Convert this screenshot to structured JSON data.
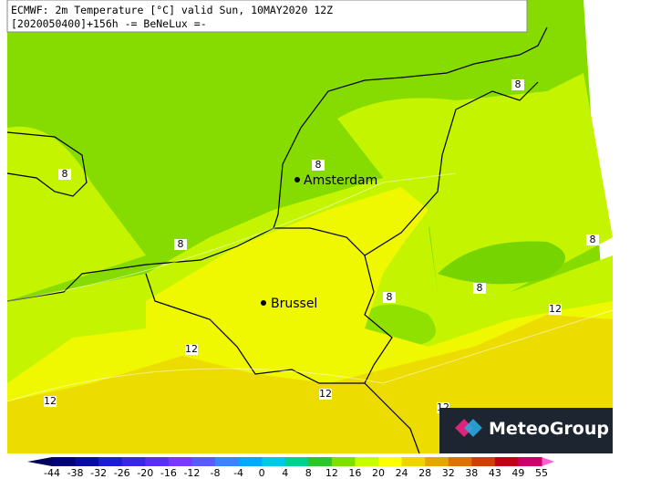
{
  "header": {
    "line1": "ECMWF: 2m Temperature [°C] valid Sun, 10MAY2020 12Z",
    "line2": "[2020050400]+156h -= BeNeLux =-"
  },
  "cities": [
    {
      "label": "Amsterdam"
    },
    {
      "label": "Brussel"
    }
  ],
  "contour_labels": [
    8,
    8,
    8,
    8,
    8,
    8,
    8,
    12,
    12,
    12,
    12,
    12
  ],
  "legend": {
    "ticks": [
      -44,
      -38,
      -32,
      -26,
      -20,
      -16,
      -12,
      -8,
      -4,
      0,
      4,
      8,
      12,
      16,
      20,
      24,
      28,
      32,
      38,
      43,
      49,
      55
    ],
    "colors": [
      "#00007a",
      "#0a0aa8",
      "#1c1cd0",
      "#3a28e0",
      "#5a30f0",
      "#7838ff",
      "#5a5aff",
      "#3a84ff",
      "#00a8ff",
      "#00c8e8",
      "#00d090",
      "#28c828",
      "#7ee000",
      "#c8ff00",
      "#ffff00",
      "#f0d400",
      "#e8a400",
      "#e07000",
      "#d43c00",
      "#c00018",
      "#c8006c"
    ],
    "low_color": "#000060",
    "high_color": "#ff60d0"
  },
  "logo": {
    "text": "MeteoGroup"
  }
}
